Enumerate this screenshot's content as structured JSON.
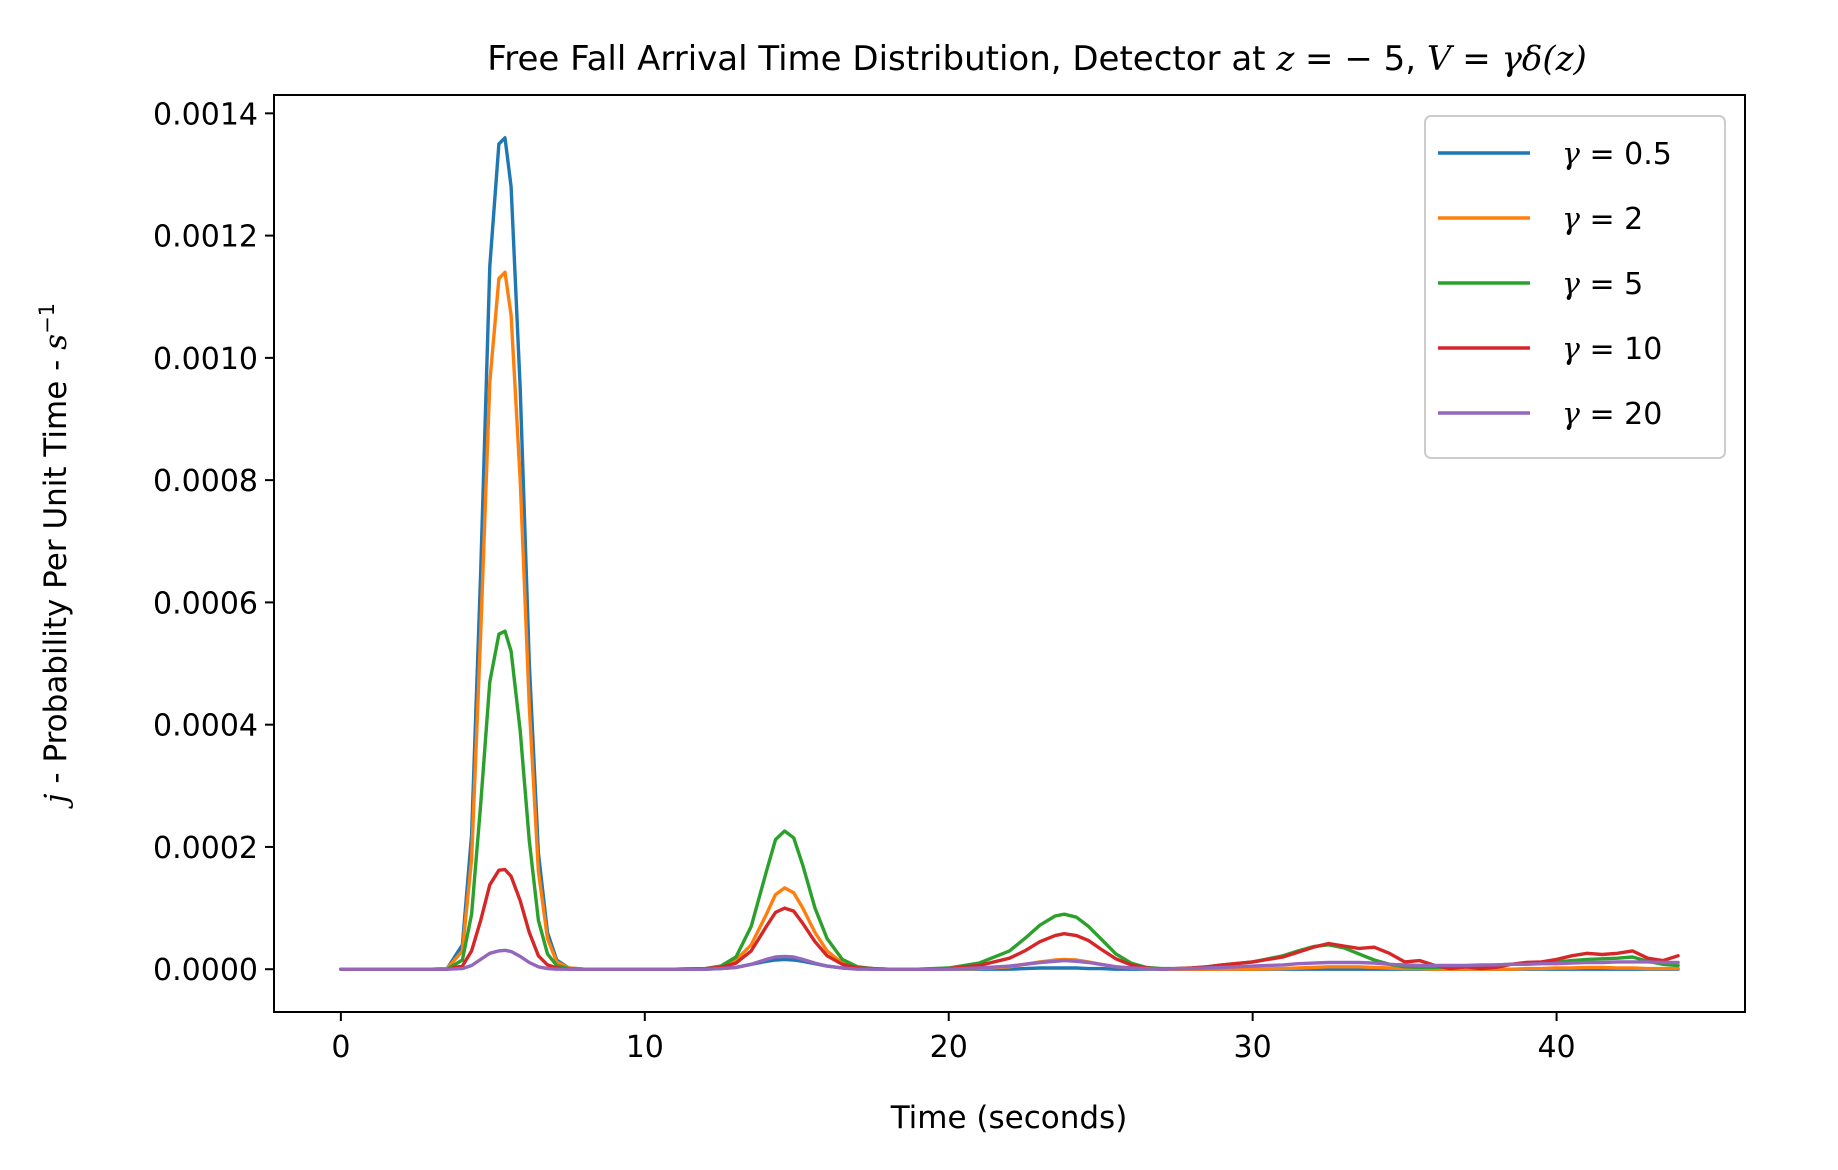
{
  "chart_data": {
    "type": "line",
    "title": {
      "text": "Free Fall Arrival Time Distribution, Detector at ",
      "z_var": "z",
      "eq1": " = ",
      "z_value": "− 5",
      "sep": ", ",
      "v_expr": "V",
      "eq2": " = ",
      "v_rhs": "γδ(z)"
    },
    "xlabel": "Time (seconds)",
    "ylabel": {
      "j": "j",
      "rest": " - Probability Per Unit Time - ",
      "s": "s",
      "sup": "−1"
    },
    "xlim": [
      -2.2,
      46.2
    ],
    "ylim": [
      -7e-05,
      0.00143
    ],
    "xticks": [
      0,
      10,
      20,
      30,
      40
    ],
    "xtick_labels": [
      "0",
      "10",
      "20",
      "30",
      "40"
    ],
    "yticks": [
      0,
      0.0002,
      0.0004,
      0.0006,
      0.0008,
      0.001,
      0.0012,
      0.0014
    ],
    "ytick_labels": [
      "0.0000",
      "0.0002",
      "0.0004",
      "0.0006",
      "0.0008",
      "0.0010",
      "0.0012",
      "0.0014"
    ],
    "grid": false,
    "legend_position": "top-right",
    "x": [
      0,
      1,
      2,
      3,
      3.5,
      4,
      4.3,
      4.6,
      4.9,
      5.2,
      5.4,
      5.6,
      5.9,
      6.2,
      6.5,
      6.8,
      7.1,
      7.5,
      8,
      9,
      10,
      11,
      12,
      12.5,
      13,
      13.5,
      14,
      14.3,
      14.6,
      14.9,
      15.2,
      15.6,
      16,
      16.5,
      17,
      17.5,
      18,
      19,
      20,
      21,
      22,
      22.5,
      23,
      23.5,
      23.8,
      24.2,
      24.6,
      25,
      25.5,
      26,
      26.5,
      27,
      27.5,
      28,
      28.5,
      29,
      30,
      31,
      31.5,
      32,
      32.5,
      33,
      33.5,
      34,
      34.5,
      35,
      35.5,
      36,
      36.5,
      37,
      37.5,
      38,
      38.5,
      39,
      39.5,
      40,
      40.5,
      41,
      41.5,
      42,
      42.5,
      43,
      43.5,
      44
    ],
    "series": [
      {
        "name": "γ = 0.5",
        "color": "#1f77b4",
        "values": [
          0,
          0,
          0,
          0,
          1e-06,
          4e-05,
          0.00022,
          0.00065,
          0.00115,
          0.00135,
          0.00136,
          0.00128,
          0.00095,
          0.0005,
          0.00019,
          6e-05,
          1.5e-05,
          2e-06,
          0,
          0,
          0,
          0,
          0,
          1e-06,
          3e-06,
          8e-06,
          1.3e-05,
          1.5e-05,
          1.6e-05,
          1.5e-05,
          1.3e-05,
          9e-06,
          5e-06,
          2e-06,
          1e-06,
          0,
          0,
          0,
          0,
          0,
          0,
          1e-06,
          2e-06,
          2e-06,
          2e-06,
          2e-06,
          1e-06,
          1e-06,
          0,
          0,
          0,
          0,
          0,
          0,
          0,
          0,
          0,
          0,
          0,
          0,
          0,
          0,
          0,
          0,
          0,
          0,
          0,
          0,
          0,
          0,
          0,
          0,
          0,
          0,
          0,
          0,
          0,
          0,
          0,
          0,
          0,
          0,
          0,
          0
        ]
      },
      {
        "name": "γ = 2",
        "color": "#ff7f0e",
        "values": [
          0,
          0,
          0,
          0,
          1e-06,
          3e-05,
          0.00018,
          0.00055,
          0.00096,
          0.00113,
          0.00114,
          0.00107,
          0.0008,
          0.00043,
          0.00016,
          5e-05,
          1.2e-05,
          2e-06,
          0,
          0,
          0,
          0,
          1e-06,
          4e-06,
          1.5e-05,
          4e-05,
          9e-05,
          0.000122,
          0.000133,
          0.000125,
          0.0001,
          6e-05,
          3e-05,
          1e-05,
          3e-06,
          1e-06,
          0,
          0,
          0,
          1e-06,
          4e-06,
          8e-06,
          1.2e-05,
          1.5e-05,
          1.6e-05,
          1.5e-05,
          1.2e-05,
          8e-06,
          4e-06,
          2e-06,
          1e-06,
          0,
          0,
          0,
          0,
          0,
          0,
          1e-06,
          2e-06,
          3e-06,
          4e-06,
          4e-06,
          4e-06,
          3e-06,
          2e-06,
          1e-06,
          1e-06,
          0,
          0,
          0,
          0,
          0,
          0,
          1e-06,
          1e-06,
          2e-06,
          2e-06,
          3e-06,
          3e-06,
          2e-06,
          2e-06,
          1e-06,
          1e-06,
          1e-06
        ]
      },
      {
        "name": "γ = 5",
        "color": "#2ca02c",
        "values": [
          0,
          0,
          0,
          0,
          0,
          1.5e-05,
          9e-05,
          0.00027,
          0.00047,
          0.000548,
          0.000553,
          0.00052,
          0.00039,
          0.00021,
          8e-05,
          2.5e-05,
          6e-06,
          1e-06,
          0,
          0,
          0,
          0,
          1e-06,
          5e-06,
          2e-05,
          7e-05,
          0.00016,
          0.000212,
          0.000226,
          0.000215,
          0.00017,
          0.0001,
          5e-05,
          1.6e-05,
          4e-06,
          1e-06,
          0,
          0,
          2e-06,
          1e-05,
          3e-05,
          5e-05,
          7.2e-05,
          8.7e-05,
          9e-05,
          8.5e-05,
          7e-05,
          5e-05,
          2.5e-05,
          1e-05,
          3e-06,
          1e-06,
          1e-06,
          2e-06,
          4e-06,
          7e-06,
          1.2e-05,
          2.2e-05,
          3e-05,
          3.7e-05,
          4e-05,
          3.5e-05,
          2.5e-05,
          1.5e-05,
          8e-06,
          4e-06,
          3e-06,
          3e-06,
          4e-06,
          5e-06,
          6e-06,
          7e-06,
          8e-06,
          9e-06,
          1e-05,
          1.2e-05,
          1.4e-05,
          1.6e-05,
          1.7e-05,
          1.8e-05,
          2e-05,
          1.3e-05,
          8e-06,
          6e-06
        ]
      },
      {
        "name": "γ = 10",
        "color": "#d62728",
        "values": [
          0,
          0,
          0,
          0,
          0,
          5e-06,
          3e-05,
          8e-05,
          0.000138,
          0.000162,
          0.000163,
          0.000152,
          0.000112,
          6e-05,
          2.2e-05,
          7e-06,
          2e-06,
          0,
          0,
          0,
          0,
          0,
          1e-06,
          3e-06,
          1e-05,
          3e-05,
          7e-05,
          9.3e-05,
          0.0001,
          9.5e-05,
          7.5e-05,
          4.5e-05,
          2.2e-05,
          8e-06,
          2e-06,
          1e-06,
          0,
          0,
          1e-06,
          6e-06,
          1.8e-05,
          3e-05,
          4.5e-05,
          5.5e-05,
          5.8e-05,
          5.5e-05,
          4.7e-05,
          3.3e-05,
          1.7e-05,
          7e-06,
          2e-06,
          0,
          1e-06,
          2e-06,
          4e-06,
          7e-06,
          1.2e-05,
          2e-05,
          2.8e-05,
          3.6e-05,
          4.2e-05,
          3.8e-05,
          3.4e-05,
          3.6e-05,
          2.6e-05,
          1.2e-05,
          1.4e-05,
          6e-06,
          1e-06,
          4e-06,
          1e-06,
          3e-06,
          8e-06,
          1.1e-05,
          1.2e-05,
          1.6e-05,
          2.2e-05,
          2.6e-05,
          2.4e-05,
          2.6e-05,
          3e-05,
          1.8e-05,
          1.4e-05,
          2.2e-05
        ]
      },
      {
        "name": "γ = 20",
        "color": "#9467bd",
        "values": [
          0,
          0,
          0,
          0,
          0,
          1e-06,
          6e-06,
          1.6e-05,
          2.6e-05,
          3e-05,
          3.1e-05,
          2.9e-05,
          2.1e-05,
          1.1e-05,
          4e-06,
          1e-06,
          0,
          0,
          0,
          0,
          0,
          0,
          0,
          1e-06,
          3e-06,
          8e-06,
          1.6e-05,
          2e-05,
          2.1e-05,
          2e-05,
          1.6e-05,
          1e-05,
          5e-06,
          2e-06,
          0,
          0,
          0,
          0,
          0,
          2e-06,
          5e-06,
          8e-06,
          1.1e-05,
          1.3e-05,
          1.4e-05,
          1.3e-05,
          1.1e-05,
          8e-06,
          4e-06,
          2e-06,
          1e-06,
          0,
          1e-06,
          1e-06,
          2e-06,
          3e-06,
          5e-06,
          7e-06,
          9e-06,
          1e-05,
          1.1e-05,
          1.1e-05,
          1.1e-05,
          1e-05,
          8e-06,
          7e-06,
          6e-06,
          6e-06,
          6e-06,
          6e-06,
          7e-06,
          7e-06,
          8e-06,
          8e-06,
          9e-06,
          9e-06,
          1e-05,
          1.1e-05,
          1.1e-05,
          1.2e-05,
          1.2e-05,
          1.2e-05,
          1.1e-05,
          1.1e-05
        ]
      }
    ]
  }
}
